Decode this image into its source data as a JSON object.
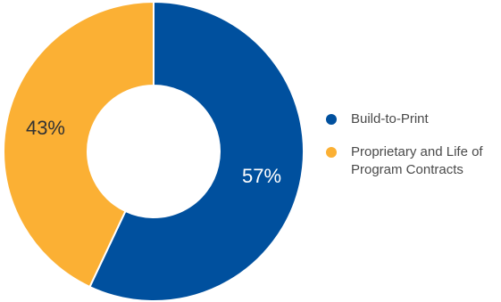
{
  "chart_data": {
    "type": "pie",
    "title": "",
    "donut": true,
    "legend_position": "right",
    "categories": [
      "Build-to-Print",
      "Proprietary and Life of Program Contracts"
    ],
    "values": [
      57,
      43
    ],
    "labels": [
      "57%",
      "43%"
    ],
    "colors": [
      "#00509e",
      "#fbb034"
    ]
  }
}
